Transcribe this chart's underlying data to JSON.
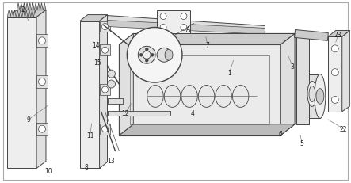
{
  "bg_color": "#ffffff",
  "lc": "#888888",
  "dc": "#444444",
  "mc": "#666666",
  "fc_light": "#eeeeee",
  "fc_mid": "#e0e0e0",
  "fc_dark": "#cccccc",
  "fc_darker": "#bbbbbb",
  "figsize": [
    4.43,
    2.32
  ],
  "dpi": 100
}
